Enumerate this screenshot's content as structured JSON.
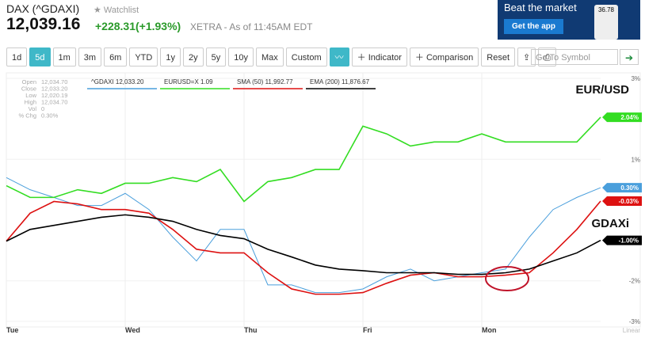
{
  "header": {
    "title": "DAX (^GDAXI)",
    "watchlist": "Watchlist",
    "price": "12,039.16",
    "change": "+228.31(+1.93%)",
    "source": "XETRA - As of 11:45AM EDT"
  },
  "ad": {
    "headline": "Beat the market",
    "button": "Get the app",
    "phone_value": "36.78"
  },
  "toolbar": {
    "ranges": [
      "1d",
      "5d",
      "1m",
      "3m",
      "6m",
      "YTD",
      "1y",
      "2y",
      "5y",
      "10y",
      "Max",
      "Custom"
    ],
    "selected_range": 1,
    "indicator": "Indicator",
    "comparison": "Comparison",
    "reset": "Reset",
    "symbol_placeholder": "Go To Symbol"
  },
  "info": [
    {
      "label": "Open",
      "value": "12,034.70"
    },
    {
      "label": "Close",
      "value": "12,033.20"
    },
    {
      "label": "Low",
      "value": "12,020.19"
    },
    {
      "label": "High",
      "value": "12,034.70"
    },
    {
      "label": "Vol",
      "value": "0"
    },
    {
      "label": "% Chg",
      "value": "0.30%"
    }
  ],
  "chart_data": {
    "type": "line",
    "categories": [
      "Tue",
      null,
      null,
      null,
      null,
      "Wed",
      null,
      null,
      null,
      null,
      "Thu",
      null,
      null,
      null,
      null,
      "Fri",
      null,
      null,
      null,
      null,
      "Mon",
      null,
      null,
      null,
      null,
      null
    ],
    "series": [
      {
        "name": "^GDAXI 12,033.20",
        "color": "#4a9fdc",
        "last_label": "0.30%",
        "values": [
          0.55,
          0.25,
          0.06,
          -0.14,
          -0.14,
          0.16,
          -0.24,
          -0.92,
          -1.51,
          -0.73,
          -0.73,
          -2.1,
          -2.1,
          -2.29,
          -2.29,
          -2.2,
          -1.9,
          -1.71,
          -2.0,
          -1.9,
          -1.8,
          -1.71,
          -0.92,
          -0.24,
          0.06,
          0.3
        ]
      },
      {
        "name": "EURUSD=X 1.09",
        "color": "#33dd22",
        "last_label": "2.04%",
        "values": [
          0.35,
          0.06,
          0.06,
          0.25,
          0.16,
          0.41,
          0.41,
          0.55,
          0.45,
          0.75,
          -0.04,
          0.45,
          0.55,
          0.75,
          0.75,
          1.82,
          1.63,
          1.33,
          1.43,
          1.43,
          1.63,
          1.43,
          1.43,
          1.43,
          1.43,
          2.04
        ]
      },
      {
        "name": "SMA (50) 11,992.77",
        "color": "#dd1111",
        "last_label": "-0.03%",
        "values": [
          -1.02,
          -0.33,
          -0.04,
          -0.1,
          -0.24,
          -0.24,
          -0.33,
          -0.73,
          -1.22,
          -1.31,
          -1.31,
          -1.8,
          -2.2,
          -2.33,
          -2.33,
          -2.29,
          -2.06,
          -1.86,
          -1.8,
          -1.9,
          -1.9,
          -1.86,
          -1.8,
          -1.31,
          -0.73,
          -0.03
        ]
      },
      {
        "name": "EMA (200) 11,876.67",
        "color": "#000000",
        "last_label": "-1.00%",
        "values": [
          -1.02,
          -0.73,
          -0.63,
          -0.53,
          -0.43,
          -0.37,
          -0.43,
          -0.53,
          -0.73,
          -0.88,
          -0.96,
          -1.22,
          -1.41,
          -1.61,
          -1.71,
          -1.75,
          -1.8,
          -1.8,
          -1.8,
          -1.84,
          -1.84,
          -1.8,
          -1.71,
          -1.51,
          -1.31,
          -1.0
        ]
      }
    ],
    "ylim": [
      -3.1,
      3.0
    ],
    "yticks": [
      {
        "value": 3,
        "label": "3%"
      },
      {
        "value": 1,
        "label": "1%"
      },
      {
        "value": -2,
        "label": "-2%"
      },
      {
        "value": -3,
        "label": "-3%"
      }
    ],
    "grid": true,
    "scale_label": "Linear",
    "annotations": [
      {
        "text": "EUR/USD",
        "series": 1
      },
      {
        "text": "GDAXi",
        "series": 0
      }
    ]
  }
}
